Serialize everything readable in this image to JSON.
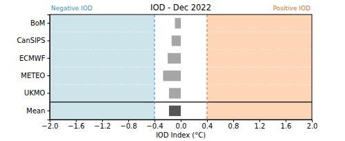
{
  "chart_data": {
    "type": "bar",
    "orientation": "horizontal",
    "title": "IOD - Dec 2022",
    "xlabel": "IOD Index (°C)",
    "categories": [
      "BoM",
      "CanSIPS",
      "ECMWF",
      "METEO",
      "UKMO",
      "Mean"
    ],
    "values": [
      -0.09,
      -0.14,
      -0.2,
      -0.27,
      -0.18,
      -0.18
    ],
    "colors": [
      "#a6a6a6",
      "#a6a6a6",
      "#a6a6a6",
      "#a6a6a6",
      "#a6a6a6",
      "#555555"
    ],
    "xlim": [
      -2.0,
      2.0
    ],
    "xticks": [
      {
        "value": -2.0,
        "label": "−2.0"
      },
      {
        "value": -1.6,
        "label": "−1.6"
      },
      {
        "value": -1.2,
        "label": "−1.2"
      },
      {
        "value": -0.8,
        "label": "−0.8"
      },
      {
        "value": -0.4,
        "label": "−0.4"
      },
      {
        "value": 0.0,
        "label": "0.0"
      },
      0.4,
      0.8,
      1.2,
      1.6,
      {
        "value": 2.0,
        "label": "2.0"
      }
    ],
    "regions": [
      {
        "label": "Negative IOD",
        "range": [
          -2.0,
          -0.4
        ],
        "color": "#cde4ea"
      },
      {
        "label": "Positive IOD",
        "range": [
          0.4,
          2.0
        ],
        "color": "#ffd5b8"
      }
    ]
  }
}
